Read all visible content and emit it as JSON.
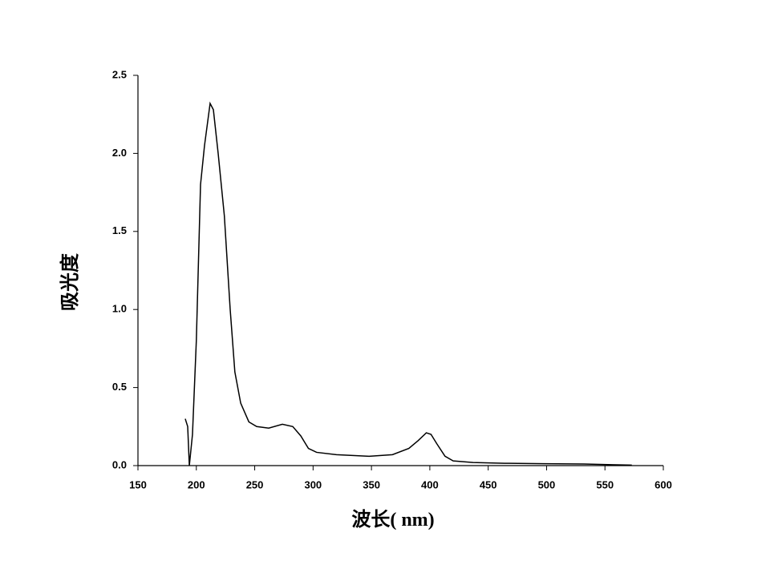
{
  "chart_data": {
    "type": "line",
    "ylabel": "吸光度",
    "xlabel": "波长(  nm)",
    "color": "#000000",
    "x": [
      190.5,
      192.6,
      194,
      196.7,
      200,
      203.6,
      207,
      211.8,
      214.6,
      218.7,
      224,
      229,
      233,
      238,
      245,
      251.7,
      262,
      273.7,
      282.6,
      289.5,
      296,
      303,
      320,
      348,
      368,
      382,
      390,
      397,
      401,
      406,
      413,
      420,
      437,
      464,
      498,
      532,
      573
    ],
    "values": [
      0.3,
      0.25,
      0,
      0.2,
      0.8,
      1.8,
      2.05,
      2.32,
      2.28,
      2.0,
      1.6,
      1.0,
      0.6,
      0.4,
      0.28,
      0.25,
      0.24,
      0.265,
      0.25,
      0.19,
      0.11,
      0.085,
      0.07,
      0.06,
      0.07,
      0.11,
      0.16,
      0.21,
      0.2,
      0.14,
      0.06,
      0.03,
      0.02,
      0.015,
      0.012,
      0.01,
      0.003
    ],
    "xlim": [
      150,
      600
    ],
    "xticks": [
      150,
      200,
      250,
      300,
      350,
      400,
      450,
      500,
      550,
      600
    ],
    "ylim": [
      0,
      2.5
    ],
    "yticks": [
      {
        "value": 0,
        "label": "0.0"
      },
      0.5,
      {
        "value": 1,
        "label": "1.0"
      },
      1.5,
      {
        "value": 2,
        "label": "2.0"
      },
      2.5
    ]
  }
}
